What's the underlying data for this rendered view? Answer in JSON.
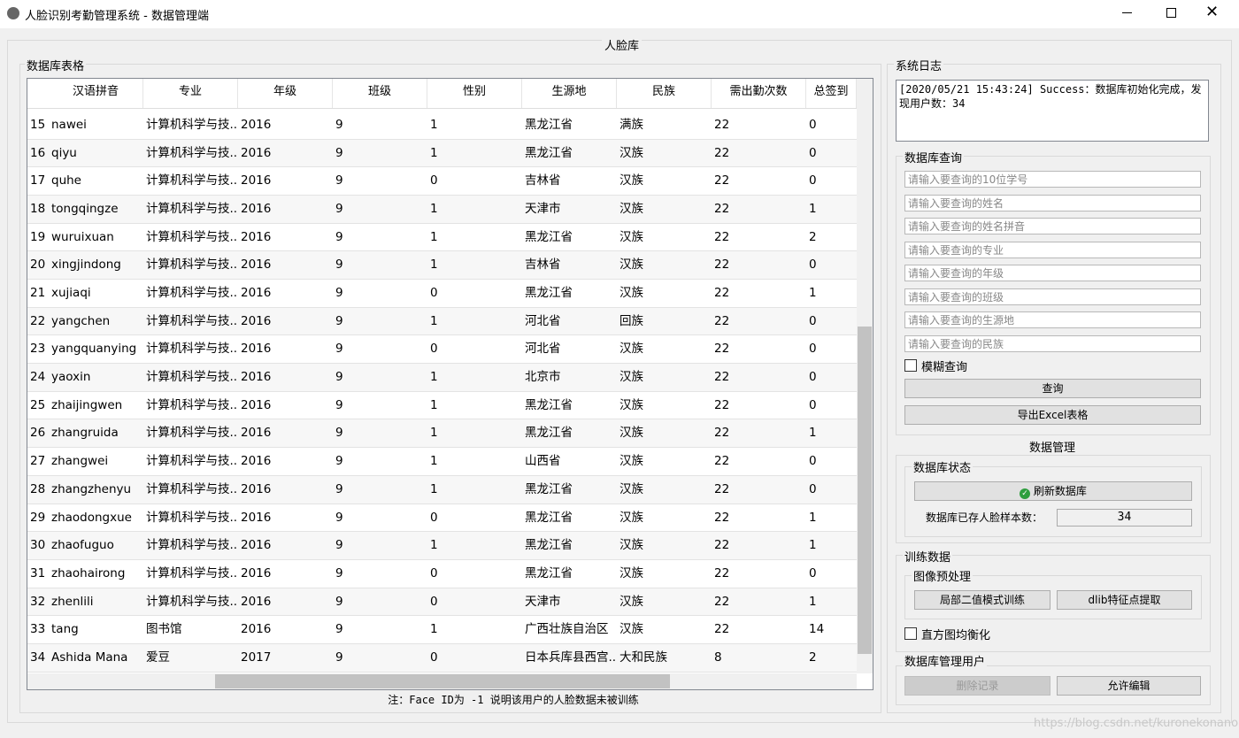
{
  "window": {
    "title": "人脸识别考勤管理系统 - 数据管理端"
  },
  "tab_title": "人脸库",
  "table_panel": {
    "title": "数据库表格",
    "headers": [
      "汉语拼音",
      "专业",
      "年级",
      "班级",
      "性别",
      "生源地",
      "民族",
      "需出勤次数",
      "总签到"
    ],
    "rows": [
      [
        "15",
        "nawei",
        "计算机科学与技...",
        "2016",
        "9",
        "1",
        "黑龙江省",
        "满族",
        "22",
        "0"
      ],
      [
        "16",
        "qiyu",
        "计算机科学与技...",
        "2016",
        "9",
        "1",
        "黑龙江省",
        "汉族",
        "22",
        "0"
      ],
      [
        "17",
        "quhe",
        "计算机科学与技...",
        "2016",
        "9",
        "0",
        "吉林省",
        "汉族",
        "22",
        "0"
      ],
      [
        "18",
        "tongqingze",
        "计算机科学与技...",
        "2016",
        "9",
        "1",
        "天津市",
        "汉族",
        "22",
        "1"
      ],
      [
        "19",
        "wuruixuan",
        "计算机科学与技...",
        "2016",
        "9",
        "1",
        "黑龙江省",
        "汉族",
        "22",
        "2"
      ],
      [
        "20",
        "xingjindong",
        "计算机科学与技...",
        "2016",
        "9",
        "1",
        "吉林省",
        "汉族",
        "22",
        "0"
      ],
      [
        "21",
        "xujiaqi",
        "计算机科学与技...",
        "2016",
        "9",
        "0",
        "黑龙江省",
        "汉族",
        "22",
        "1"
      ],
      [
        "22",
        "yangchen",
        "计算机科学与技...",
        "2016",
        "9",
        "1",
        "河北省",
        "回族",
        "22",
        "0"
      ],
      [
        "23",
        "yangquanying",
        "计算机科学与技...",
        "2016",
        "9",
        "0",
        "河北省",
        "汉族",
        "22",
        "0"
      ],
      [
        "24",
        "yaoxin",
        "计算机科学与技...",
        "2016",
        "9",
        "1",
        "北京市",
        "汉族",
        "22",
        "0"
      ],
      [
        "25",
        "zhaijingwen",
        "计算机科学与技...",
        "2016",
        "9",
        "1",
        "黑龙江省",
        "汉族",
        "22",
        "0"
      ],
      [
        "26",
        "zhangruida",
        "计算机科学与技...",
        "2016",
        "9",
        "1",
        "黑龙江省",
        "汉族",
        "22",
        "1"
      ],
      [
        "27",
        "zhangwei",
        "计算机科学与技...",
        "2016",
        "9",
        "1",
        "山西省",
        "汉族",
        "22",
        "0"
      ],
      [
        "28",
        "zhangzhenyu",
        "计算机科学与技...",
        "2016",
        "9",
        "1",
        "黑龙江省",
        "汉族",
        "22",
        "0"
      ],
      [
        "29",
        "zhaodongxue",
        "计算机科学与技...",
        "2016",
        "9",
        "0",
        "黑龙江省",
        "汉族",
        "22",
        "1"
      ],
      [
        "30",
        "zhaofuguo",
        "计算机科学与技...",
        "2016",
        "9",
        "1",
        "黑龙江省",
        "汉族",
        "22",
        "1"
      ],
      [
        "31",
        "zhaohairong",
        "计算机科学与技...",
        "2016",
        "9",
        "0",
        "黑龙江省",
        "汉族",
        "22",
        "0"
      ],
      [
        "32",
        "zhenlili",
        "计算机科学与技...",
        "2016",
        "9",
        "0",
        "天津市",
        "汉族",
        "22",
        "1"
      ],
      [
        "33",
        "tang",
        "图书馆",
        "2016",
        "9",
        "1",
        "广西壮族自治区",
        "汉族",
        "22",
        "14"
      ],
      [
        "34",
        "Ashida Mana",
        "爱豆",
        "2017",
        "9",
        "0",
        "日本兵库县西宫...",
        "大和民族",
        "8",
        "2"
      ]
    ],
    "note": "注：Face ID为 -1 说明该用户的人脸数据未被训练"
  },
  "log_panel": {
    "title": "系统日志",
    "text": "[2020/05/21 15:43:24] Success：数据库初始化完成，发现用户数：34"
  },
  "query_panel": {
    "title": "数据库查询",
    "placeholders": [
      "请输入要查询的10位学号",
      "请输入要查询的姓名",
      "请输入要查询的姓名拼音",
      "请输入要查询的专业",
      "请输入要查询的年级",
      "请输入要查询的班级",
      "请输入要查询的生源地",
      "请输入要查询的民族"
    ],
    "fuzzy_checkbox": "模糊查询",
    "query_button": "查询",
    "export_button": "导出Excel表格"
  },
  "manage_panel": {
    "title": "数据管理",
    "status_group": "数据库状态",
    "refresh_button": "刷新数据库",
    "count_label": "数据库已存人脸样本数：",
    "count_value": "34"
  },
  "train_panel": {
    "title": "训练数据",
    "group": "图像预处理",
    "lbph_button": "局部二值模式训练",
    "dlib_button": "dlib特征点提取",
    "equalize_checkbox": "直方图均衡化"
  },
  "user_panel": {
    "title": "数据库管理用户",
    "delete_button": "删除记录",
    "edit_button": "允许编辑"
  },
  "watermark": "https://blog.csdn.net/kuronekonano"
}
